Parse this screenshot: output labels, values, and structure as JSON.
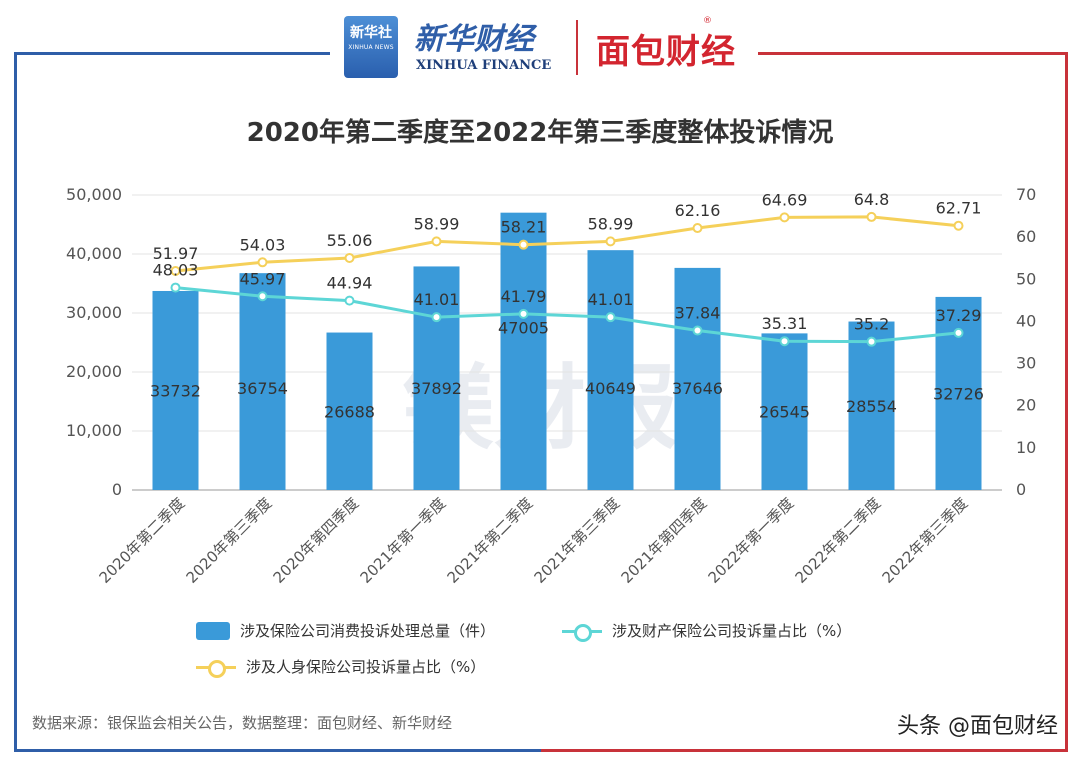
{
  "header": {
    "xinhua_logo_top": "新华社",
    "xinhua_logo_sub": "XINHUA NEWS",
    "xinhua_finance_cn": "新华财经",
    "xinhua_finance_en": "XINHUA FINANCE",
    "mianbao_logo": "面包财经"
  },
  "watermark": "镁财报",
  "source": "数据来源：银保监会相关公告，数据整理：面包财经、新华财经",
  "toutiao": "头条 @面包财经",
  "colors": {
    "bar": "#3a9ad9",
    "property_line": "#5dd6d6",
    "life_line": "#f5d05a",
    "frame_left": "#2f5ea8",
    "frame_right": "#c8323a"
  },
  "chart_data": {
    "type": "bar",
    "title": "2020年第二季度至2022年第三季度整体投诉情况",
    "categories": [
      "2020年第二季度",
      "2020年第三季度",
      "2020年第四季度",
      "2021年第一季度",
      "2021年第二季度",
      "2021年第三季度",
      "2021年第四季度",
      "2022年第一季度",
      "2022年第二季度",
      "2022年第三季度"
    ],
    "left_axis": {
      "ylim": [
        0,
        50000
      ],
      "ticks": [
        "0",
        "10,000",
        "20,000",
        "30,000",
        "40,000",
        "50,000"
      ],
      "tick_values": [
        0,
        10000,
        20000,
        30000,
        40000,
        50000
      ]
    },
    "right_axis": {
      "ylim": [
        0,
        70
      ],
      "ticks": [
        "0",
        "10",
        "20",
        "30",
        "40",
        "50",
        "60",
        "70"
      ],
      "tick_values": [
        0,
        10,
        20,
        30,
        40,
        50,
        60,
        70
      ]
    },
    "series": [
      {
        "name": "涉及保险公司消费投诉处理总量（件）",
        "type": "bar",
        "axis": "left",
        "values": [
          33732,
          36754,
          26688,
          37892,
          47005,
          40649,
          37646,
          26545,
          28554,
          32726
        ],
        "labels": [
          "33732",
          "36754",
          "26688",
          "37892",
          "47005",
          "40649",
          "37646",
          "26545",
          "28554",
          "32726"
        ]
      },
      {
        "name": "涉及财产保险公司投诉量占比（%）",
        "type": "line",
        "axis": "right",
        "values": [
          48.03,
          45.97,
          44.94,
          41.01,
          41.79,
          41.01,
          37.84,
          35.31,
          35.2,
          37.29
        ],
        "labels": [
          "48.03",
          "45.97",
          "44.94",
          "41.01",
          "41.79",
          "41.01",
          "37.84",
          "35.31",
          "35.2",
          "37.29"
        ]
      },
      {
        "name": "涉及人身保险公司投诉量占比（%）",
        "type": "line",
        "axis": "right",
        "values": [
          51.97,
          54.03,
          55.06,
          58.99,
          58.21,
          58.99,
          62.16,
          64.69,
          64.8,
          62.71
        ],
        "labels": [
          "51.97",
          "54.03",
          "55.06",
          "58.99",
          "58.21",
          "58.99",
          "62.16",
          "64.69",
          "64.8",
          "62.71"
        ]
      }
    ],
    "legend_position": "bottom",
    "grid": true
  }
}
